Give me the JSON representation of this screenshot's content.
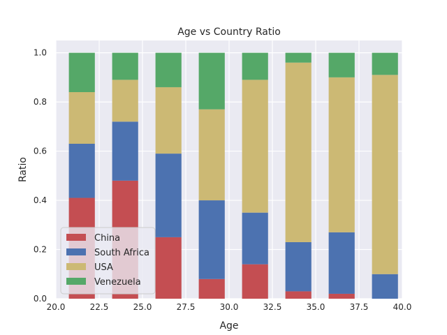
{
  "chart_data": {
    "type": "bar",
    "stacked": true,
    "title": "Age vs Country Ratio",
    "xlabel": "Age",
    "ylabel": "Ratio",
    "xlim": [
      20.0,
      40.0
    ],
    "ylim": [
      0.0,
      1.05
    ],
    "xticks": [
      "20.0",
      "22.5",
      "25.0",
      "27.5",
      "30.0",
      "32.5",
      "35.0",
      "37.5",
      "40.0"
    ],
    "yticks": [
      "0.0",
      "0.2",
      "0.4",
      "0.6",
      "0.8",
      "1.0"
    ],
    "grid": true,
    "legend_position": "lower-left",
    "x": [
      21.5,
      24.0,
      26.5,
      29.0,
      31.5,
      34.0,
      36.5,
      39.0
    ],
    "series": [
      {
        "name": "China",
        "color": "#c44e52",
        "values": [
          0.41,
          0.48,
          0.25,
          0.08,
          0.14,
          0.03,
          0.02,
          0.0
        ]
      },
      {
        "name": "South Africa",
        "color": "#4c72b0",
        "values": [
          0.22,
          0.24,
          0.34,
          0.32,
          0.21,
          0.2,
          0.25,
          0.1
        ]
      },
      {
        "name": "USA",
        "color": "#ccb974",
        "values": [
          0.21,
          0.17,
          0.27,
          0.37,
          0.54,
          0.73,
          0.63,
          0.81
        ]
      },
      {
        "name": "Venezuela",
        "color": "#55a868",
        "values": [
          0.16,
          0.11,
          0.14,
          0.23,
          0.11,
          0.04,
          0.1,
          0.09
        ]
      }
    ]
  }
}
